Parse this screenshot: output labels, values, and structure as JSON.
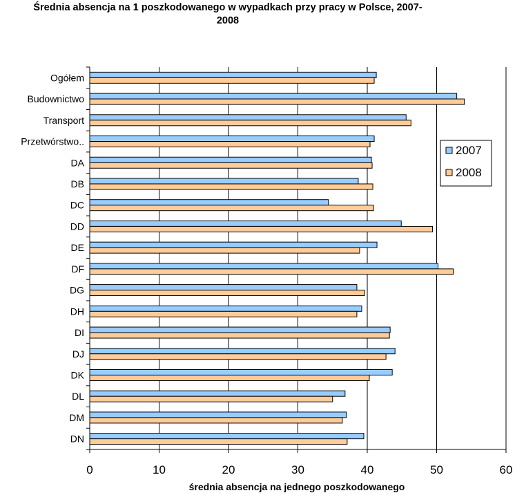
{
  "chart_data": {
    "type": "bar",
    "orientation": "horizontal",
    "title": "Średnia absencja na 1 poszkodowanego w wypadkach przy pracy w Polsce, 2007-2008",
    "title_lines": [
      "Średnia absencja na 1 poszkodowanego w wypadkach przy pracy w Polsce, 2007-",
      "2008"
    ],
    "xlabel": "średnia absencja na jednego poszkodowanego",
    "ylabel": "",
    "xlim": [
      0,
      60
    ],
    "x_ticks": [
      "0",
      "10",
      "20",
      "30",
      "40",
      "50",
      "60"
    ],
    "grid": "vertical",
    "legend_position": "right",
    "categories": [
      "Ogółem",
      "Budownictwo",
      "Transport",
      "Przetwórstwo..",
      "DA",
      "DB",
      "DC",
      "DD",
      "DE",
      "DF",
      "DG",
      "DH",
      "DI",
      "DJ",
      "DK",
      "DL",
      "DM",
      "DN"
    ],
    "series": [
      {
        "name": "2007",
        "color": "#99CCFF",
        "values": [
          41.3,
          52.9,
          45.6,
          41.0,
          40.6,
          38.7,
          34.4,
          44.9,
          41.4,
          50.2,
          38.5,
          39.2,
          43.3,
          44.0,
          43.6,
          36.8,
          37.0,
          39.5
        ]
      },
      {
        "name": "2008",
        "color": "#FFCC99",
        "values": [
          41.0,
          54.0,
          46.3,
          40.4,
          40.7,
          40.8,
          40.9,
          49.4,
          38.9,
          52.4,
          39.6,
          38.5,
          43.2,
          42.7,
          40.3,
          35.0,
          36.4,
          37.1
        ]
      }
    ]
  }
}
